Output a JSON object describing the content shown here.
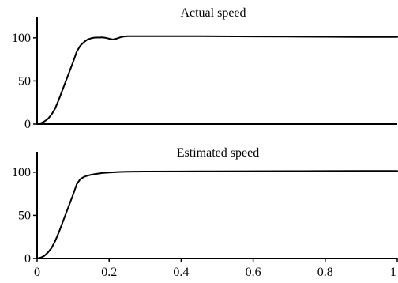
{
  "chart_data": [
    {
      "type": "line",
      "title": "Actual speed",
      "xlabel": "",
      "ylabel": "",
      "xlim": [
        0,
        1
      ],
      "ylim": [
        0,
        120
      ],
      "yticks": [
        0,
        50,
        100
      ],
      "ytick_labels": [
        "0",
        "50",
        "100"
      ],
      "xticks": [],
      "xtick_labels": [],
      "grid": false,
      "series": [
        {
          "x": [
            0,
            0.01,
            0.02,
            0.03,
            0.04,
            0.05,
            0.06,
            0.08,
            0.1,
            0.11,
            0.12,
            0.13,
            0.14,
            0.15,
            0.16,
            0.18,
            0.19,
            0.2,
            0.21,
            0.22,
            0.23,
            0.24,
            0.25,
            0.3,
            0.4,
            0.5,
            0.6,
            0.7,
            0.8,
            0.9,
            1.0
          ],
          "y": [
            0,
            1,
            3,
            6,
            11,
            18,
            28,
            50,
            72,
            84,
            91,
            95,
            98,
            99.5,
            100.3,
            100.5,
            100,
            99,
            98,
            99,
            100.5,
            101.5,
            102,
            102,
            102,
            101.8,
            101.6,
            101.4,
            101.2,
            101,
            101
          ],
          "color": "#000000"
        }
      ]
    },
    {
      "type": "line",
      "title": "Estimated speed",
      "xlabel": "",
      "ylabel": "",
      "xlim": [
        0,
        1
      ],
      "ylim": [
        0,
        120
      ],
      "yticks": [
        0,
        50,
        100
      ],
      "ytick_labels": [
        "0",
        "50",
        "100"
      ],
      "xticks": [
        0,
        0.2,
        0.4,
        0.6,
        0.8,
        1
      ],
      "xtick_labels": [
        "0",
        "0.2",
        "0.4",
        "0.6",
        "0.8",
        "1"
      ],
      "grid": false,
      "series": [
        {
          "x": [
            0,
            0.01,
            0.02,
            0.03,
            0.04,
            0.05,
            0.06,
            0.08,
            0.1,
            0.11,
            0.12,
            0.13,
            0.14,
            0.15,
            0.16,
            0.18,
            0.2,
            0.22,
            0.23,
            0.25,
            0.3,
            0.4,
            0.5,
            0.6,
            0.7,
            0.8,
            0.9,
            1.0
          ],
          "y": [
            0,
            1,
            3,
            7,
            12,
            20,
            30,
            52,
            74,
            86,
            92,
            94.5,
            96,
            97,
            97.8,
            99,
            99.6,
            100,
            100.3,
            100.6,
            100.8,
            100.9,
            101,
            101.1,
            101.2,
            101.3,
            101.4,
            101.5
          ],
          "color": "#000000"
        }
      ]
    }
  ]
}
